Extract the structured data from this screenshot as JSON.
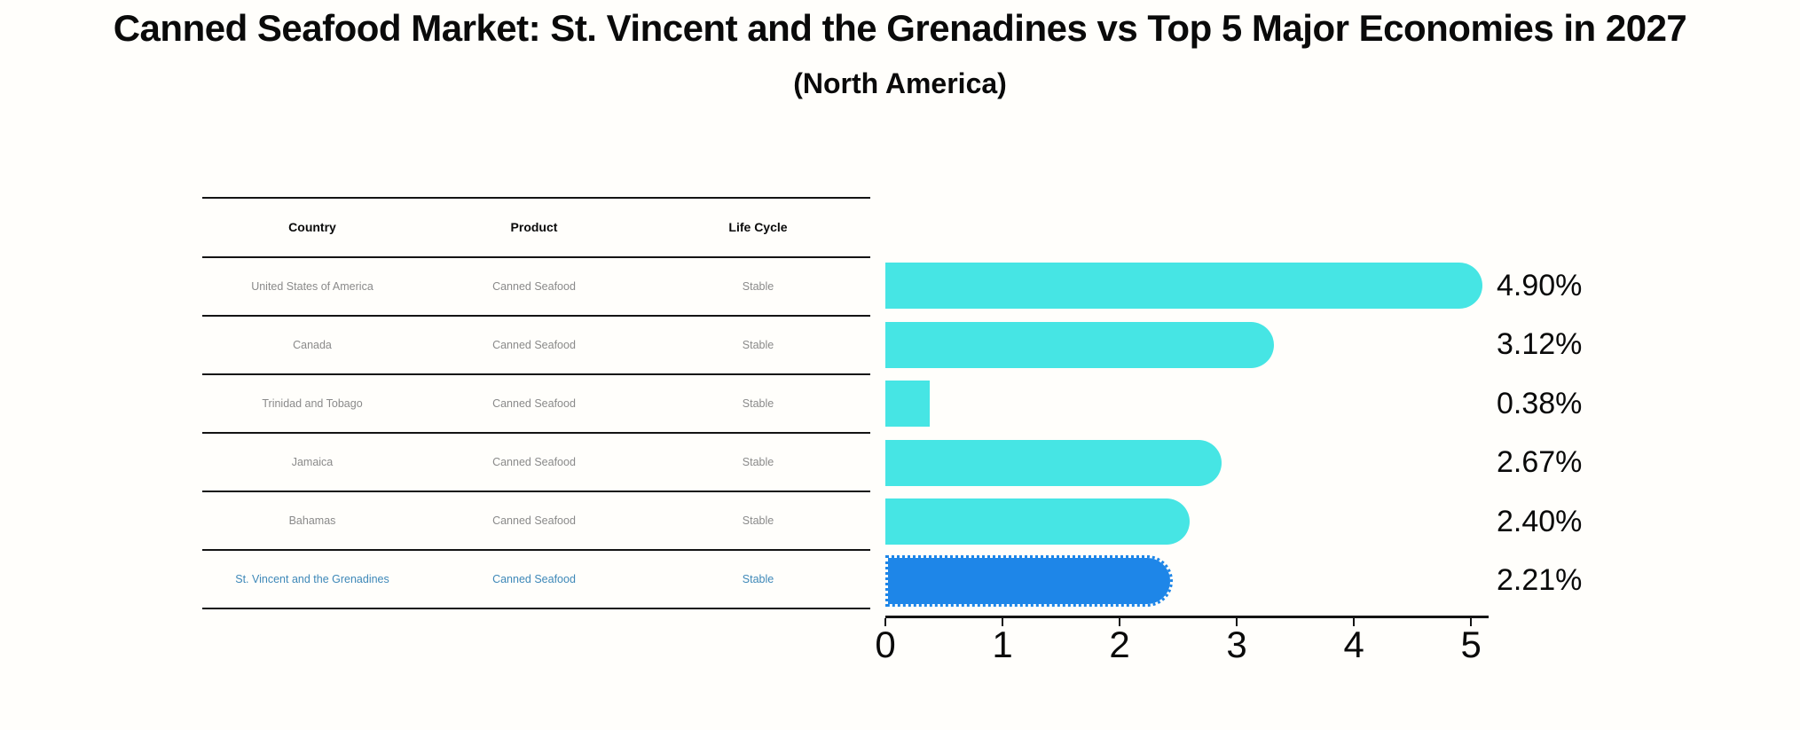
{
  "title": "Canned Seafood Market: St. Vincent and the Grenadines vs Top 5 Major Economies in 2027",
  "subtitle": "(North America)",
  "table": {
    "columns": [
      "Country",
      "Product",
      "Life Cycle"
    ],
    "rows": [
      {
        "country": "United States of America",
        "product": "Canned Seafood",
        "life_cycle": "Stable",
        "highlight": false
      },
      {
        "country": "Canada",
        "product": "Canned Seafood",
        "life_cycle": "Stable",
        "highlight": false
      },
      {
        "country": "Trinidad and Tobago",
        "product": "Canned Seafood",
        "life_cycle": "Stable",
        "highlight": false
      },
      {
        "country": "Jamaica",
        "product": "Canned Seafood",
        "life_cycle": "Stable",
        "highlight": false
      },
      {
        "country": "Bahamas",
        "product": "Canned Seafood",
        "life_cycle": "Stable",
        "highlight": false
      },
      {
        "country": "St. Vincent and the Grenadines",
        "product": "Canned Seafood",
        "life_cycle": "Stable",
        "highlight": true
      }
    ]
  },
  "chart_data": {
    "type": "bar",
    "orientation": "horizontal",
    "title": "Canned Seafood Market: St. Vincent and the Grenadines vs Top 5 Major Economies in 2027",
    "subtitle": "(North America)",
    "categories": [
      "United States of America",
      "Canada",
      "Trinidad and Tobago",
      "Jamaica",
      "Bahamas",
      "St. Vincent and the Grenadines"
    ],
    "values": [
      4.9,
      3.12,
      0.38,
      2.67,
      2.4,
      2.21
    ],
    "value_labels": [
      "4.90%",
      "3.12%",
      "0.38%",
      "2.67%",
      "2.40%",
      "2.21%"
    ],
    "x_ticks": [
      0,
      1,
      2,
      3,
      4,
      5
    ],
    "xlim": [
      0,
      5.15
    ],
    "grid": false,
    "legend": false,
    "highlight_index": 5
  },
  "colors": {
    "bar": "#46E5E4",
    "highlight_bar": "#1E86E8",
    "highlight_text": "#3E88B8",
    "axis": "#141414",
    "row_text": "#8A8A8A",
    "title_text": "#0A0A0A"
  }
}
